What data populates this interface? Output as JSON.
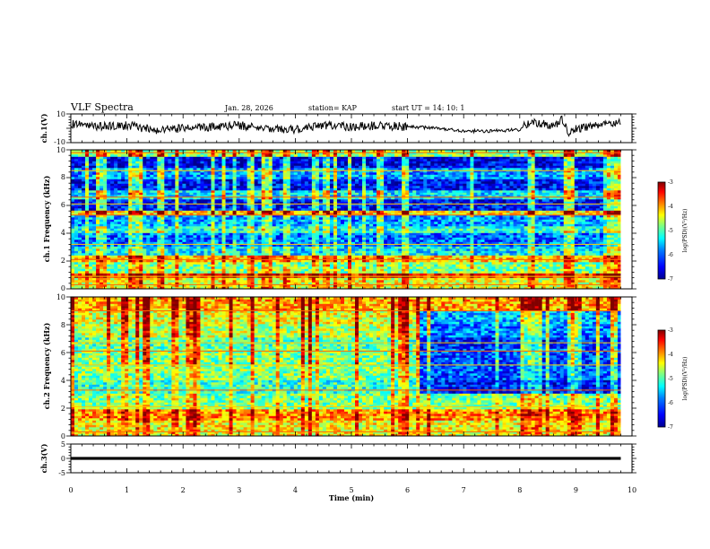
{
  "header": {
    "title": "VLF Spectra",
    "date": "Jan. 28, 2026",
    "station": "station= KAP",
    "start_ut": "start  UT =   14: 10: 1"
  },
  "colors": {
    "jet": [
      "#00008f",
      "#0000ff",
      "#0080ff",
      "#00ffff",
      "#80ff80",
      "#ffff00",
      "#ff8000",
      "#ff0000",
      "#800000"
    ]
  },
  "chart_data": [
    {
      "id": "ch1_waveform",
      "type": "line",
      "title": "",
      "xlabel": "",
      "ylabel": "ch.1(V)",
      "xlim": [
        0,
        10
      ],
      "ylim": [
        -10,
        10
      ],
      "ytick_labels": [
        "10",
        "-10"
      ],
      "series": [
        {
          "name": "ch.1 voltage",
          "x": [
            0,
            0.5,
            1,
            1.5,
            2,
            2.5,
            3,
            3.5,
            4,
            4.5,
            5,
            5.5,
            6,
            6.5,
            7,
            7.5,
            8,
            8.2,
            8.4,
            8.6,
            8.75,
            8.9,
            9,
            9.3,
            9.6,
            9.8
          ],
          "y": [
            3,
            1,
            2,
            -1,
            0,
            1,
            2,
            0,
            -1,
            2,
            1,
            2,
            1,
            0,
            -2,
            -2,
            -1,
            5,
            3,
            2,
            6,
            -4,
            0,
            1,
            3,
            5
          ]
        }
      ]
    },
    {
      "id": "ch1_spectrogram",
      "type": "heatmap",
      "title": "",
      "xlabel": "",
      "ylabel": "ch.1 Frequency (kHz)",
      "xlim": [
        0,
        10
      ],
      "ylim": [
        0,
        10
      ],
      "ytick_labels": [
        "0",
        "2",
        "4",
        "6",
        "8",
        "10"
      ],
      "colorbar": {
        "label": "log(PSD)(V²/Hz)",
        "range": [
          -7,
          -3
        ],
        "tick_labels": [
          "-3",
          "-4",
          "-5",
          "-6",
          "-7"
        ]
      },
      "bands": [
        {
          "from": 0.0,
          "to": 0.7,
          "value": -4.6
        },
        {
          "from": 0.7,
          "to": 1.0,
          "value": -3.6
        },
        {
          "from": 1.0,
          "to": 1.8,
          "value": -5.0
        },
        {
          "from": 1.8,
          "to": 2.3,
          "value": -4.3
        },
        {
          "from": 2.3,
          "to": 3.0,
          "value": -5.6
        },
        {
          "from": 3.0,
          "to": 3.9,
          "value": -6.1
        },
        {
          "from": 3.9,
          "to": 4.5,
          "value": -5.4
        },
        {
          "from": 4.5,
          "to": 5.2,
          "value": -5.9
        },
        {
          "from": 5.2,
          "to": 5.6,
          "value": -4.4
        },
        {
          "from": 5.6,
          "to": 6.3,
          "value": -6.5
        },
        {
          "from": 6.3,
          "to": 7.0,
          "value": -5.6
        },
        {
          "from": 7.0,
          "to": 7.9,
          "value": -6.5
        },
        {
          "from": 7.9,
          "to": 8.6,
          "value": -5.9
        },
        {
          "from": 8.6,
          "to": 9.5,
          "value": -6.6
        },
        {
          "from": 9.5,
          "to": 10.0,
          "value": -4.9
        }
      ],
      "tones_khz": [
        0.3,
        0.9,
        2.1,
        3.2,
        5.3,
        6.1,
        6.6,
        8.5,
        9.8
      ],
      "mean_level": -5.5
    },
    {
      "id": "ch2_spectrogram",
      "type": "heatmap",
      "title": "",
      "xlabel": "",
      "ylabel": "ch.2 Frequency (kHz)",
      "xlim": [
        0,
        10
      ],
      "ylim": [
        0,
        10
      ],
      "ytick_labels": [
        "0",
        "2",
        "4",
        "6",
        "8",
        "10"
      ],
      "colorbar": {
        "label": "log(PSD)(V²/Hz)",
        "range": [
          -7,
          -3
        ],
        "tick_labels": [
          "-3",
          "-4",
          "-5",
          "-6",
          "-7"
        ]
      },
      "bands": [
        {
          "from": 0.0,
          "to": 1.0,
          "value": -4.5
        },
        {
          "from": 1.0,
          "to": 1.8,
          "value": -4.1
        },
        {
          "from": 1.8,
          "to": 3.0,
          "value": -5.0
        },
        {
          "from": 3.0,
          "to": 4.0,
          "value": -5.3
        },
        {
          "from": 4.0,
          "to": 5.0,
          "value": -5.0
        },
        {
          "from": 5.0,
          "to": 6.2,
          "value": -5.0
        },
        {
          "from": 6.2,
          "to": 7.0,
          "value": -5.2
        },
        {
          "from": 7.0,
          "to": 8.0,
          "value": -4.8
        },
        {
          "from": 8.0,
          "to": 9.0,
          "value": -4.6
        },
        {
          "from": 9.0,
          "to": 10.0,
          "value": -4.2
        }
      ],
      "regime_change_min": 6.2,
      "after_change_offset": -1.2,
      "tones_khz": [
        0.3,
        2.1,
        3.3,
        5.1,
        6.1,
        6.7,
        9.0
      ],
      "mean_level": -5.0
    },
    {
      "id": "ch3_waveform",
      "type": "line",
      "title": "",
      "xlabel": "Time (min)",
      "ylabel": "ch.3(V)",
      "xlim": [
        0,
        10
      ],
      "ylim": [
        -5,
        5
      ],
      "ytick_labels": [
        "5",
        "0",
        "-5"
      ],
      "xtick_labels": [
        "0",
        "1",
        "2",
        "3",
        "4",
        "5",
        "6",
        "7",
        "8",
        "9",
        "10"
      ],
      "series": [
        {
          "name": "ch.3 voltage",
          "x": [
            0,
            9.8
          ],
          "y": [
            0,
            0
          ],
          "band_halfwidth": 0.5
        }
      ]
    }
  ]
}
